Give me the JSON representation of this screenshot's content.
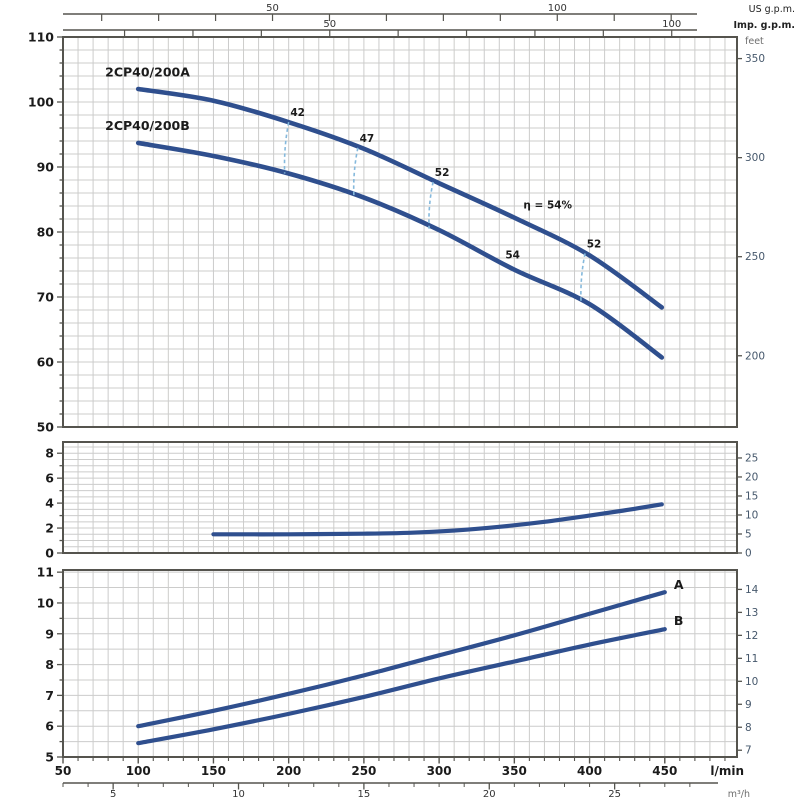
{
  "palette": {
    "curve_blue": "#2f4f8e",
    "efficiency_dash_blue": "#85b9dc",
    "grid_gray": "#cccccb",
    "axis_gray": "#55544e",
    "label_dark": "#1b1b1b",
    "label_slate": "#46586c",
    "label_gray": "#6e6e6e",
    "tick_label_gray": "#333333"
  },
  "top_axes": [
    {
      "name": "us-gpm-axis",
      "unit_label": "US g.p.m.",
      "lpm_per_unit": 3.78541,
      "ticks": [
        20,
        30,
        40,
        50,
        60,
        70,
        80,
        90,
        100,
        110,
        120
      ],
      "labeled_ticks": [
        50,
        100
      ],
      "bold_unit": false
    },
    {
      "name": "imp-gpm-axis",
      "unit_label": "Imp. g.p.m.",
      "lpm_per_unit": 4.54609,
      "ticks": [
        20,
        30,
        40,
        50,
        60,
        70,
        80,
        90,
        100
      ],
      "labeled_ticks": [
        50,
        100
      ],
      "bold_unit": true
    }
  ],
  "bottom_axes": [
    {
      "name": "lpm-axis",
      "unit_label": "l/min",
      "labeled_ticks": [
        50,
        100,
        150,
        200,
        250,
        300,
        350,
        400,
        450
      ],
      "minor_tick_step": 10
    },
    {
      "name": "m3h-axis",
      "unit_label": "m³/h",
      "lpm_per_unit": 16.6667,
      "tick_range": [
        3,
        28
      ],
      "labeled_ticks": [
        5,
        10,
        15,
        20,
        25
      ]
    }
  ],
  "chart_data": [
    {
      "type": "line",
      "name": "head-capacity-chart",
      "x_unit": "l/min",
      "x_range": [
        50,
        498
      ],
      "x_grid_step": 10,
      "y_left": {
        "range": [
          50,
          110
        ],
        "labeled_ticks": [
          50,
          60,
          70,
          80,
          90,
          100,
          110
        ],
        "minor_tick_step": 2,
        "grid_step": 2
      },
      "y_right": {
        "unit_label": "feet",
        "ticks": [
          200,
          250,
          300,
          350
        ],
        "left_units_per_right_unit": 0.3048
      },
      "series": [
        {
          "label": "2CP40/200A",
          "label_at": [
            78,
            103.9
          ],
          "points": [
            [
              100,
              102
            ],
            [
              150,
              100.2
            ],
            [
              200,
              96.9
            ],
            [
              250,
              92.8
            ],
            [
              300,
              87.5
            ],
            [
              350,
              82.2
            ],
            [
              400,
              76.4
            ],
            [
              448,
              68.4
            ]
          ]
        },
        {
          "label": "2CP40/200B",
          "label_at": [
            78,
            95.7
          ],
          "points": [
            [
              100,
              93.7
            ],
            [
              150,
              91.7
            ],
            [
              200,
              89.0
            ],
            [
              250,
              85.3
            ],
            [
              300,
              80.3
            ],
            [
              350,
              74.2
            ],
            [
              400,
              68.9
            ],
            [
              448,
              60.7
            ]
          ]
        }
      ],
      "efficiency_markers": [
        {
          "x": 200,
          "label": "42",
          "top": 96.9,
          "bottom": 89.0
        },
        {
          "x": 246,
          "label": "47",
          "top": 92.95,
          "bottom": 85.6
        },
        {
          "x": 296,
          "label": "52",
          "top": 87.7,
          "bottom": 80.5
        },
        {
          "x": 397,
          "label": "52",
          "top": 76.7,
          "bottom": 69.2
        }
      ],
      "annotations": [
        {
          "text": "η = 54%",
          "at": [
            356,
            83.6
          ]
        },
        {
          "text": "54",
          "at": [
            344,
            75.9
          ]
        }
      ]
    },
    {
      "type": "line",
      "name": "npsh-chart",
      "x_unit": "l/min",
      "x_range": [
        50,
        498
      ],
      "x_grid_step": 10,
      "y_left": {
        "range": [
          0,
          8.9
        ],
        "labeled_ticks": [
          0,
          2,
          4,
          6,
          8
        ],
        "minor_tick_step": 1,
        "grid_step": 0.5
      },
      "y_right": {
        "unit_label": "",
        "ticks": [
          0,
          5,
          10,
          15,
          20,
          25
        ],
        "left_units_per_right_unit": 0.3048
      },
      "series": [
        {
          "label": "",
          "points": [
            [
              150,
              1.5
            ],
            [
              200,
              1.5
            ],
            [
              250,
              1.55
            ],
            [
              280,
              1.62
            ],
            [
              310,
              1.8
            ],
            [
              340,
              2.1
            ],
            [
              370,
              2.5
            ],
            [
              400,
              3.0
            ],
            [
              425,
              3.45
            ],
            [
              448,
              3.9
            ]
          ]
        }
      ]
    },
    {
      "type": "line",
      "name": "power-chart",
      "x_unit": "l/min",
      "x_range": [
        50,
        498
      ],
      "x_grid_step": 10,
      "y_left": {
        "range": [
          5,
          11.07
        ],
        "labeled_ticks": [
          5,
          6,
          7,
          8,
          9,
          10,
          11
        ],
        "minor_tick_step": 0.5,
        "grid_step": 0.5
      },
      "y_right": {
        "unit_label": "",
        "ticks": [
          7,
          8,
          9,
          10,
          11,
          12,
          13,
          14
        ],
        "left_units_per_right_unit": 0.7457
      },
      "series": [
        {
          "label": "A",
          "label_at": [
            456,
            10.45
          ],
          "points": [
            [
              100,
              6.0
            ],
            [
              150,
              6.5
            ],
            [
              200,
              7.05
            ],
            [
              250,
              7.65
            ],
            [
              300,
              8.3
            ],
            [
              350,
              8.95
            ],
            [
              400,
              9.65
            ],
            [
              450,
              10.35
            ]
          ]
        },
        {
          "label": "B",
          "label_at": [
            456,
            9.28
          ],
          "points": [
            [
              100,
              5.45
            ],
            [
              150,
              5.9
            ],
            [
              200,
              6.4
            ],
            [
              250,
              6.95
            ],
            [
              300,
              7.55
            ],
            [
              350,
              8.1
            ],
            [
              400,
              8.65
            ],
            [
              450,
              9.15
            ]
          ]
        }
      ]
    }
  ]
}
